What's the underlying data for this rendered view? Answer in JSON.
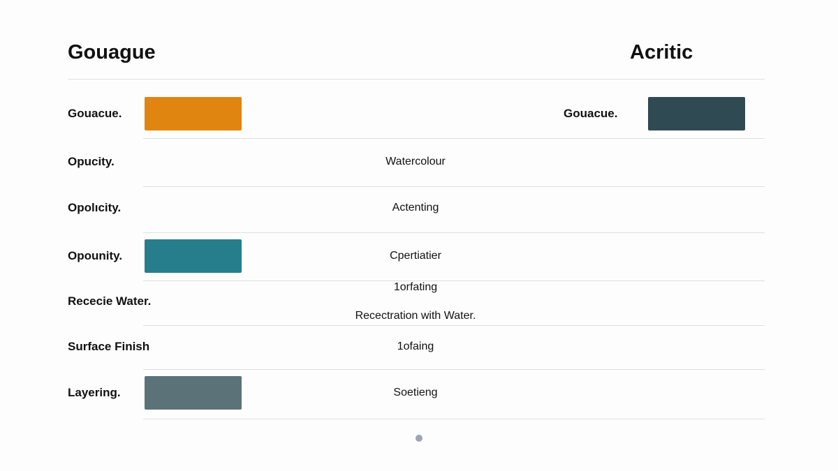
{
  "header": {
    "title": "Gouague",
    "right_title": "Acritic"
  },
  "rows": [
    {
      "label": "Gouacue.",
      "swatch": "#e0850f",
      "right_label": "Gouacue.",
      "right_swatch": "#2f4a52"
    },
    {
      "label": "Opucity.",
      "middle": [
        "Watercolour"
      ]
    },
    {
      "label": "Opolıcity.",
      "middle": [
        "Actenting"
      ]
    },
    {
      "label": "Opounity.",
      "swatch": "#267e8c",
      "middle": [
        "Cpertiatier"
      ]
    },
    {
      "label": "Rececie Water.",
      "middle": [
        "1orfating",
        "Recectration with Water."
      ]
    },
    {
      "label": "Surface Finish",
      "middle": [
        "1ofaing"
      ]
    },
    {
      "label": "Layering.",
      "swatch": "#5b7279",
      "middle": [
        "Soetieng"
      ]
    }
  ]
}
